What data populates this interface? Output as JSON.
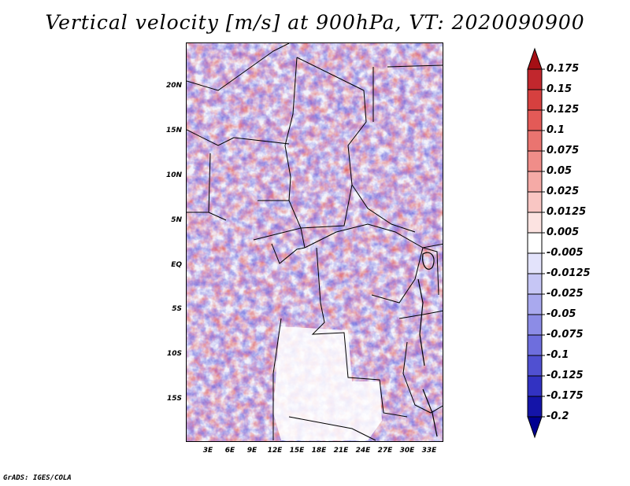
{
  "title": "Vertical velocity [m/s] at 900hPa, VT: 2020090900",
  "lat_labels": [
    "20N",
    "15N",
    "10N",
    "5N",
    "EQ",
    "5S",
    "10S",
    "15S"
  ],
  "lon_labels": [
    "3E",
    "6E",
    "9E",
    "12E",
    "15E",
    "18E",
    "21E",
    "24E",
    "27E",
    "30E",
    "33E"
  ],
  "colorbar": {
    "labels": [
      "0.175",
      "0.15",
      "0.125",
      "0.1",
      "0.075",
      "0.05",
      "0.025",
      "0.0125",
      "0.005",
      "-0.005",
      "-0.0125",
      "-0.025",
      "-0.05",
      "-0.075",
      "-0.1",
      "-0.125",
      "-0.175",
      "-0.2"
    ],
    "colors": [
      "#a50f15",
      "#c1272d",
      "#d6403f",
      "#e35a57",
      "#ea7470",
      "#f08d89",
      "#f5aaa6",
      "#f9c6c3",
      "#fce3e1",
      "#ffffff",
      "#e3e3fb",
      "#c6c6f5",
      "#a9a9ee",
      "#8c8ce6",
      "#6e6edd",
      "#5050d1",
      "#3232c2",
      "#1414a8",
      "#000090"
    ]
  },
  "credit": "GrADS: IGES/COLA"
}
